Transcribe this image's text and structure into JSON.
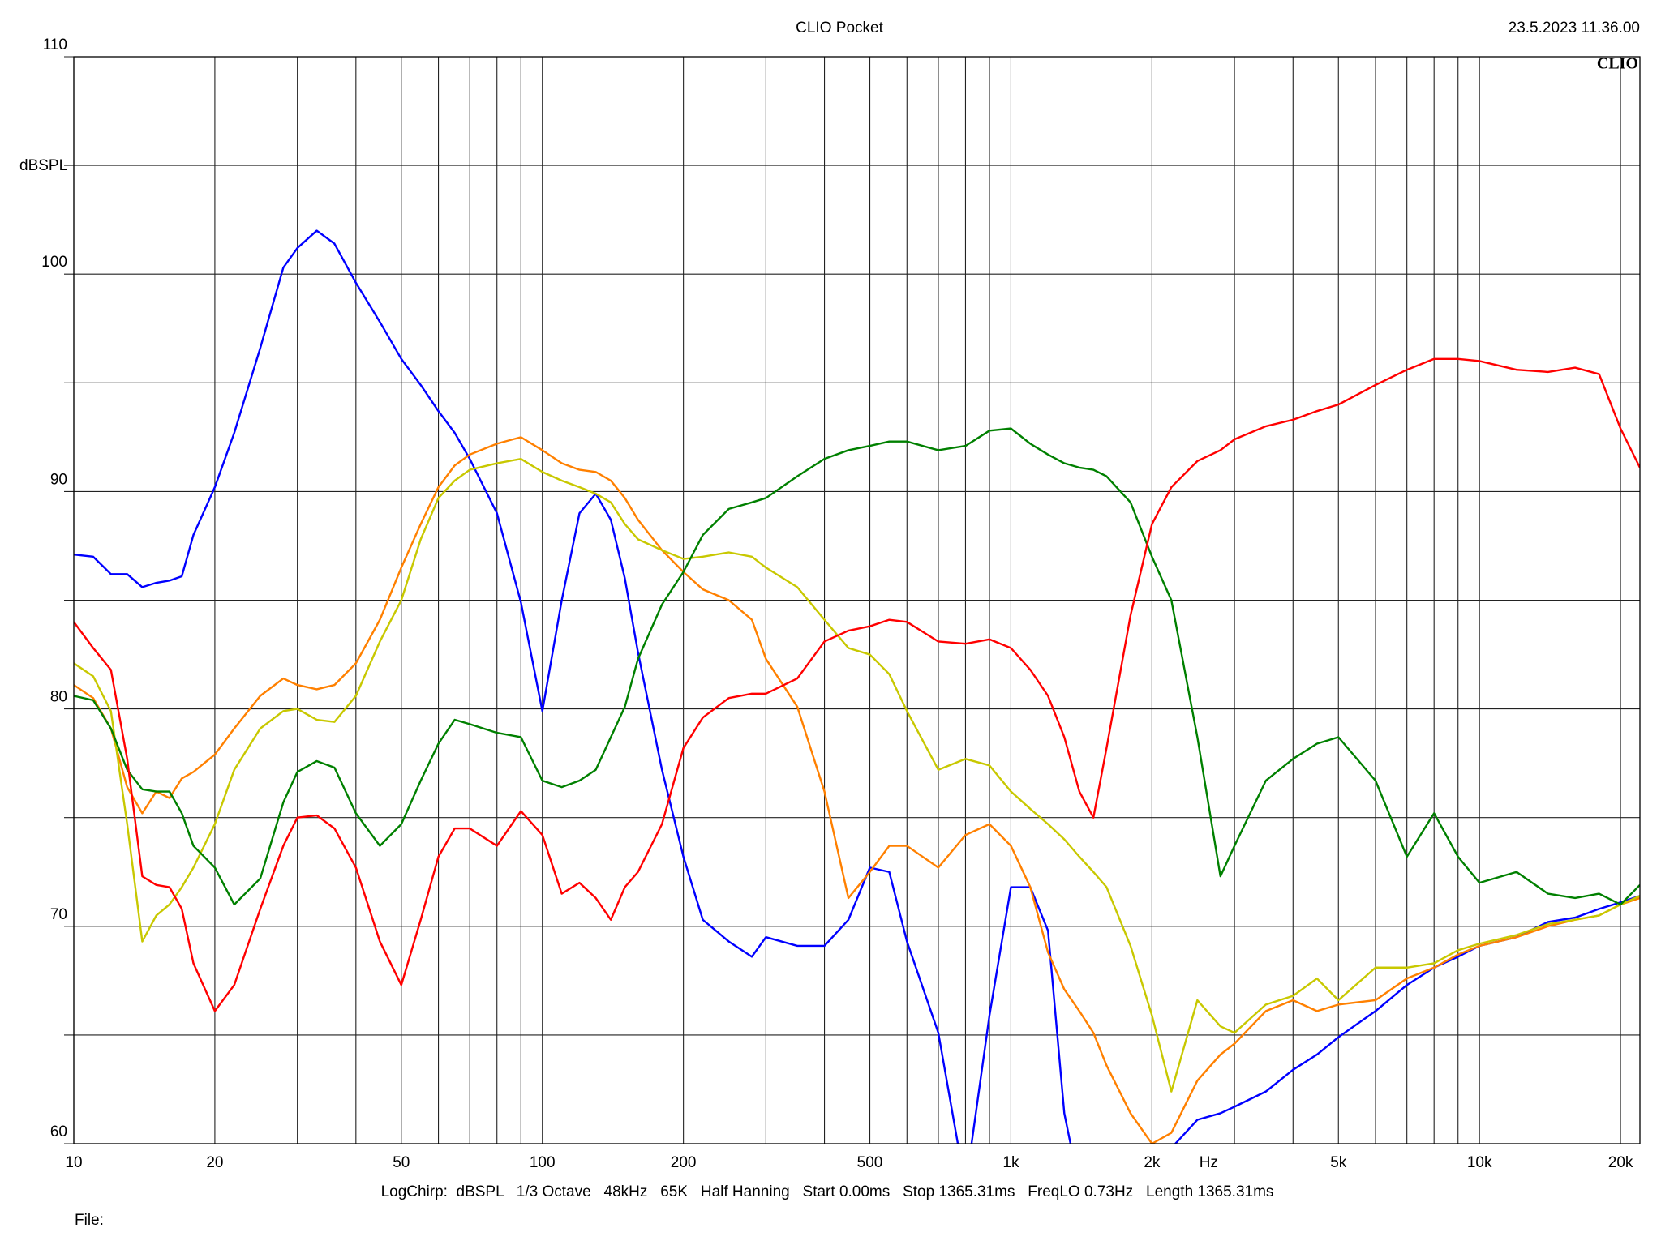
{
  "chart_data": {
    "type": "line",
    "title": "CLIO Pocket",
    "timestamp": "23.5.2023 11.36.00",
    "logo": "CLIO",
    "y_label": "dBSPL",
    "x_label": "Hz",
    "settings_line": "LogChirp:  dBSPL   1/3 Octave   48kHz   65K   Half Hanning   Start 0.00ms   Stop 1365.31ms   FreqLO 0.73Hz   Length 1365.31ms",
    "file_label": "File:",
    "x_log": true,
    "grid": true,
    "xlim": [
      10,
      22000
    ],
    "ylim": [
      60,
      110
    ],
    "xticks": [
      10,
      20,
      50,
      100,
      200,
      500,
      {
        "value": 1000,
        "label": "1k"
      },
      {
        "value": 2000,
        "label": "2k"
      },
      {
        "value": 5000,
        "label": "5k"
      },
      {
        "value": 10000,
        "label": "10k"
      },
      {
        "value": 20000,
        "label": "20k"
      }
    ],
    "xminorticks": [
      30,
      40,
      60,
      70,
      80,
      90,
      300,
      400,
      600,
      700,
      800,
      900,
      3000,
      4000,
      6000,
      7000,
      8000,
      9000
    ],
    "yticks": [
      60,
      70,
      80,
      90,
      100,
      110
    ],
    "yminorticks": [
      65,
      75,
      85,
      95,
      105
    ],
    "x": [
      10,
      11,
      12,
      13,
      14,
      15,
      16,
      17,
      18,
      20,
      22,
      25,
      28,
      30,
      33,
      36,
      40,
      45,
      50,
      55,
      60,
      65,
      70,
      80,
      90,
      100,
      110,
      120,
      130,
      140,
      150,
      160,
      180,
      200,
      220,
      250,
      280,
      300,
      350,
      400,
      450,
      500,
      550,
      600,
      700,
      800,
      900,
      1000,
      1100,
      1200,
      1300,
      1400,
      1500,
      1600,
      1800,
      2000,
      2200,
      2500,
      2800,
      3000,
      3500,
      4000,
      4500,
      5000,
      6000,
      7000,
      8000,
      9000,
      10000,
      12000,
      14000,
      16000,
      18000,
      20000,
      22000
    ],
    "series": [
      {
        "color": "#0000ff",
        "values": [
          87.1,
          87.0,
          86.2,
          86.2,
          85.6,
          85.8,
          85.9,
          86.1,
          88.0,
          90.2,
          92.7,
          96.6,
          100.3,
          101.2,
          102.0,
          101.4,
          99.6,
          97.8,
          96.1,
          94.9,
          93.7,
          92.7,
          91.5,
          89.0,
          84.9,
          79.9,
          85.0,
          89.0,
          89.9,
          88.7,
          86.0,
          82.6,
          77.2,
          73.2,
          70.3,
          69.3,
          68.6,
          69.5,
          69.1,
          69.1,
          70.3,
          72.7,
          72.5,
          69.3,
          65.1,
          58,
          65.9,
          71.8,
          71.8,
          69.8,
          61.4,
          58,
          58,
          59.5,
          59.6,
          59.5,
          59.8,
          61.1,
          61.4,
          61.7,
          62.4,
          63.4,
          64.1,
          64.9,
          66.1,
          67.3,
          68.1,
          68.6,
          69.1,
          69.5,
          70.2,
          70.4,
          70.8,
          71.1,
          71.4
        ]
      },
      {
        "color": "#ff8000",
        "values": [
          81.1,
          80.5,
          79.1,
          76.4,
          75.2,
          76.2,
          75.9,
          76.8,
          77.1,
          77.9,
          79.1,
          80.6,
          81.4,
          81.1,
          80.9,
          81.1,
          82.1,
          84.1,
          86.5,
          88.5,
          90.2,
          91.2,
          91.7,
          92.2,
          92.5,
          91.9,
          91.3,
          91.0,
          90.9,
          90.5,
          89.7,
          88.7,
          87.3,
          86.3,
          85.5,
          85.0,
          84.1,
          82.3,
          80.1,
          76.2,
          71.3,
          72.5,
          73.7,
          73.7,
          72.7,
          74.2,
          74.7,
          73.7,
          71.8,
          68.8,
          67.1,
          66.1,
          65.1,
          63.6,
          61.4,
          60.0,
          60.5,
          62.9,
          64.1,
          64.6,
          66.1,
          66.6,
          66.1,
          66.4,
          66.6,
          67.6,
          68.1,
          68.7,
          69.1,
          69.5,
          70.0,
          70.3,
          70.5,
          71.0,
          71.3
        ]
      },
      {
        "color": "#c8c800",
        "values": [
          82.1,
          81.5,
          79.9,
          74.7,
          69.3,
          70.5,
          71.0,
          71.8,
          72.7,
          74.7,
          77.2,
          79.1,
          79.9,
          80.0,
          79.5,
          79.4,
          80.6,
          83.1,
          85.0,
          87.8,
          89.7,
          90.5,
          91.0,
          91.3,
          91.5,
          90.9,
          90.5,
          90.2,
          89.9,
          89.5,
          88.5,
          87.8,
          87.3,
          86.9,
          87.0,
          87.2,
          87.0,
          86.5,
          85.6,
          84.1,
          82.8,
          82.5,
          81.6,
          79.9,
          77.2,
          77.7,
          77.4,
          76.2,
          75.4,
          74.7,
          74.0,
          73.2,
          72.5,
          71.8,
          69.1,
          65.9,
          62.4,
          66.6,
          65.4,
          65.1,
          66.4,
          66.8,
          67.6,
          66.6,
          68.1,
          68.1,
          68.3,
          68.9,
          69.2,
          69.6,
          70.1,
          70.3,
          70.5,
          71.0,
          71.4
        ]
      },
      {
        "color": "#008000",
        "values": [
          80.6,
          80.4,
          79.1,
          77.2,
          76.3,
          76.2,
          76.2,
          75.2,
          73.7,
          72.7,
          71.0,
          72.2,
          75.7,
          77.1,
          77.6,
          77.3,
          75.2,
          73.7,
          74.7,
          76.7,
          78.4,
          79.5,
          79.3,
          78.9,
          78.7,
          76.7,
          76.4,
          76.7,
          77.2,
          78.7,
          80.1,
          82.3,
          84.8,
          86.3,
          88.0,
          89.2,
          89.5,
          89.7,
          90.7,
          91.5,
          91.9,
          92.1,
          92.3,
          92.3,
          91.9,
          92.1,
          92.8,
          92.9,
          92.2,
          91.7,
          91.3,
          91.1,
          91.0,
          90.7,
          89.5,
          87.0,
          85.0,
          78.7,
          72.3,
          73.7,
          76.7,
          77.7,
          78.4,
          78.7,
          76.7,
          73.2,
          75.2,
          73.2,
          72.0,
          72.5,
          71.5,
          71.3,
          71.5,
          71.0,
          71.9
        ]
      },
      {
        "color": "#ff0000",
        "values": [
          84.0,
          82.8,
          81.8,
          77.7,
          72.3,
          71.9,
          71.8,
          70.8,
          68.3,
          66.1,
          67.3,
          70.8,
          73.7,
          75.0,
          75.1,
          74.5,
          72.7,
          69.3,
          67.3,
          70.3,
          73.2,
          74.5,
          74.5,
          73.7,
          75.3,
          74.2,
          71.5,
          72.0,
          71.3,
          70.3,
          71.8,
          72.5,
          74.7,
          78.2,
          79.6,
          80.5,
          80.7,
          80.7,
          81.4,
          83.1,
          83.6,
          83.8,
          84.1,
          84.0,
          83.1,
          83.0,
          83.2,
          82.8,
          81.8,
          80.6,
          78.7,
          76.2,
          75.0,
          78.2,
          84.3,
          88.5,
          90.2,
          91.4,
          91.9,
          92.4,
          93.0,
          93.3,
          93.7,
          94.0,
          94.9,
          95.6,
          96.1,
          96.1,
          96.0,
          95.6,
          95.5,
          95.7,
          95.4,
          92.9,
          91.1
        ]
      }
    ]
  }
}
